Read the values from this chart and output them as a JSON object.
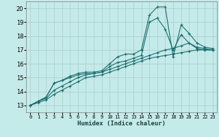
{
  "xlabel": "Humidex (Indice chaleur)",
  "ylabel": "",
  "background_color": "#c5eaea",
  "grid_color": "#aecece",
  "line_color": "#1a6b6b",
  "xlim": [
    -0.5,
    23.5
  ],
  "ylim": [
    12.5,
    20.5
  ],
  "xticks": [
    0,
    1,
    2,
    3,
    4,
    5,
    6,
    7,
    8,
    9,
    10,
    11,
    12,
    13,
    14,
    15,
    16,
    17,
    18,
    19,
    20,
    21,
    22,
    23
  ],
  "yticks": [
    13,
    14,
    15,
    16,
    17,
    18,
    19,
    20
  ],
  "series": [
    {
      "x": [
        0,
        1,
        2,
        3,
        4,
        5,
        6,
        7,
        8,
        9,
        10,
        11,
        12,
        13,
        14,
        15,
        16,
        17,
        18,
        19,
        20,
        21,
        22,
        23
      ],
      "y": [
        13.0,
        13.3,
        13.6,
        14.6,
        14.8,
        15.1,
        15.3,
        15.4,
        15.4,
        15.5,
        16.0,
        16.5,
        16.7,
        16.7,
        17.0,
        19.5,
        20.1,
        20.1,
        16.5,
        18.8,
        18.2,
        17.5,
        17.2,
        17.1
      ]
    },
    {
      "x": [
        0,
        1,
        2,
        3,
        4,
        5,
        6,
        7,
        8,
        9,
        10,
        11,
        12,
        13,
        14,
        15,
        16,
        17,
        18,
        19,
        20,
        21,
        22,
        23
      ],
      "y": [
        13.0,
        13.3,
        13.6,
        14.6,
        14.8,
        15.0,
        15.2,
        15.3,
        15.3,
        15.4,
        15.8,
        16.1,
        16.2,
        16.4,
        16.6,
        19.0,
        19.3,
        18.5,
        17.0,
        18.1,
        17.5,
        17.2,
        17.1,
        17.0
      ]
    },
    {
      "x": [
        0,
        1,
        2,
        3,
        4,
        5,
        6,
        7,
        8,
        9,
        10,
        11,
        12,
        13,
        14,
        15,
        16,
        17,
        18,
        19,
        20,
        21,
        22,
        23
      ],
      "y": [
        13.0,
        13.3,
        13.5,
        14.1,
        14.4,
        14.7,
        15.0,
        15.2,
        15.3,
        15.4,
        15.6,
        15.8,
        16.0,
        16.2,
        16.4,
        16.6,
        16.8,
        17.0,
        17.1,
        17.3,
        17.5,
        17.1,
        17.0,
        17.0
      ]
    },
    {
      "x": [
        0,
        1,
        2,
        3,
        4,
        5,
        6,
        7,
        8,
        9,
        10,
        11,
        12,
        13,
        14,
        15,
        16,
        17,
        18,
        19,
        20,
        21,
        22,
        23
      ],
      "y": [
        13.0,
        13.2,
        13.4,
        13.8,
        14.1,
        14.4,
        14.7,
        15.0,
        15.1,
        15.2,
        15.4,
        15.6,
        15.8,
        16.0,
        16.2,
        16.4,
        16.5,
        16.6,
        16.7,
        16.8,
        16.9,
        17.0,
        17.0,
        17.0
      ]
    }
  ]
}
